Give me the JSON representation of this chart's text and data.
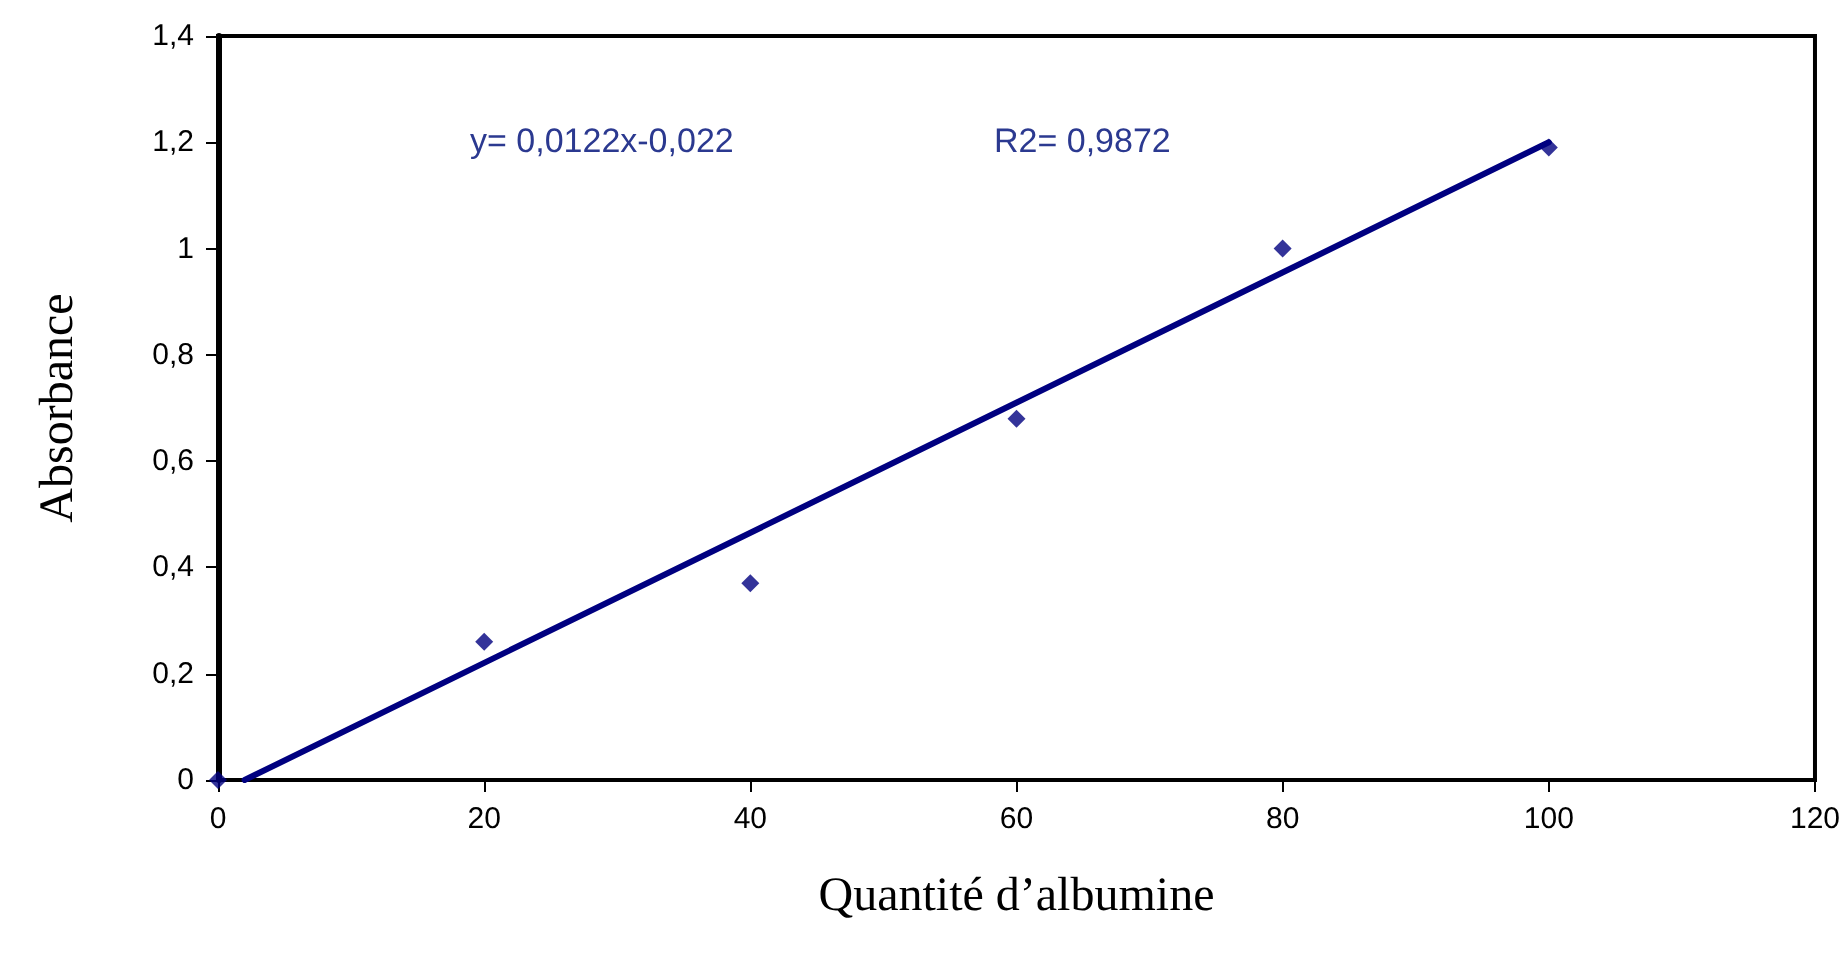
{
  "chart_data": {
    "type": "scatter",
    "xlabel": "Quantité d’albumine",
    "ylabel": "Absorbance",
    "annotations": [
      "y= 0,0122x-0,022",
      "R2= 0,9872"
    ],
    "series": [
      {
        "color": "#000080",
        "x": [
          0,
          20,
          40,
          60,
          80,
          100
        ],
        "values": [
          0,
          0.26,
          0.37,
          0.68,
          1.0,
          1.19
        ],
        "marker": "diamond"
      },
      {
        "type": "line",
        "color": "#000080",
        "x": [
          2,
          100
        ],
        "values": [
          0,
          1.2
        ],
        "marker": "none",
        "line_style": "solid"
      }
    ],
    "xlim": [
      0,
      120
    ],
    "xticks": [
      0,
      20,
      40,
      60,
      80,
      100,
      120
    ],
    "ylim": [
      0,
      1.4
    ],
    "yticks": [
      0,
      {
        "value": 0.2,
        "label": "0,2"
      },
      {
        "value": 0.4,
        "label": "0,4"
      },
      {
        "value": 0.6,
        "label": "0,6"
      },
      {
        "value": 0.8,
        "label": "0,8"
      },
      1,
      {
        "value": 1.2,
        "label": "1,2"
      },
      {
        "value": 1.4,
        "label": "1,4"
      }
    ],
    "grid": false
  }
}
